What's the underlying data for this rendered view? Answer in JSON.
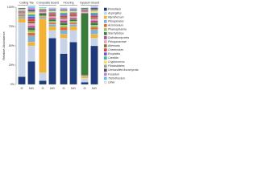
{
  "chart_data": {
    "type": "stacked-bar",
    "y_label": "Relative Abundance",
    "groups": [
      "Ceiling Tile",
      "Composite Board",
      "Flooring",
      "Gypsum Board"
    ],
    "categories": [
      "G",
      "NG",
      "G",
      "NG",
      "G",
      "NG",
      "G",
      "NG"
    ],
    "ylim": [
      0,
      100
    ],
    "yticks": [
      {
        "value": 0,
        "label": "0%"
      },
      {
        "value": 25,
        "label": "25%"
      },
      {
        "value": 50,
        "label": "50%"
      },
      {
        "value": 75,
        "label": "75%"
      },
      {
        "value": 100,
        "label": "100%"
      }
    ],
    "series": [
      {
        "name": "Penicillium",
        "color": "#1f3a7a",
        "values": [
          10,
          30,
          5,
          60,
          40,
          55,
          3,
          50
        ]
      },
      {
        "name": "Aspergillus",
        "color": "#c7d3e6",
        "values": [
          70,
          20,
          10,
          10,
          20,
          15,
          5,
          10
        ]
      },
      {
        "name": "Myrothecium",
        "color": "#f2b233",
        "values": [
          5,
          5,
          70,
          5,
          5,
          5,
          2,
          5
        ]
      },
      {
        "name": "Pleosporales",
        "color": "#7fb2d9",
        "values": [
          2,
          8,
          2,
          3,
          5,
          3,
          1,
          6
        ]
      },
      {
        "name": "Acremonium",
        "color": "#e06b2a",
        "values": [
          1,
          4,
          1,
          2,
          4,
          2,
          1,
          3
        ]
      },
      {
        "name": "Phaeosphaeria",
        "color": "#9bc26a",
        "values": [
          1,
          3,
          1,
          2,
          3,
          2,
          0,
          3
        ]
      },
      {
        "name": "Stachybotrys",
        "color": "#3a7d3a",
        "values": [
          1,
          3,
          3,
          2,
          3,
          2,
          80,
          3
        ]
      },
      {
        "name": "Dothideomycetes",
        "color": "#b04a8c",
        "values": [
          1,
          3,
          1,
          2,
          3,
          2,
          1,
          3
        ]
      },
      {
        "name": "Pleosporaceae",
        "color": "#e8a0c0",
        "values": [
          1,
          3,
          1,
          2,
          2,
          2,
          1,
          2
        ]
      },
      {
        "name": "Alternaria",
        "color": "#8c6d3a",
        "values": [
          1,
          3,
          1,
          2,
          2,
          2,
          1,
          2
        ]
      },
      {
        "name": "Chaetomium",
        "color": "#d94040",
        "values": [
          1,
          3,
          1,
          2,
          2,
          2,
          1,
          2
        ]
      },
      {
        "name": "Exophiala",
        "color": "#6a5acd",
        "values": [
          1,
          3,
          1,
          1,
          2,
          1,
          1,
          2
        ]
      },
      {
        "name": "Candida",
        "color": "#40b0a0",
        "values": [
          1,
          3,
          1,
          1,
          2,
          1,
          1,
          2
        ]
      },
      {
        "name": "Cryptococcus",
        "color": "#f0e060",
        "values": [
          1,
          2,
          1,
          1,
          2,
          1,
          0,
          2
        ]
      },
      {
        "name": "Filobasidiales",
        "color": "#a0a0a0",
        "values": [
          1,
          2,
          0,
          1,
          1,
          1,
          0,
          2
        ]
      },
      {
        "name": "Unclassified Ascomycota",
        "color": "#505050",
        "values": [
          1,
          2,
          0,
          1,
          1,
          1,
          1,
          2
        ]
      },
      {
        "name": "Fusarium",
        "color": "#c080e0",
        "values": [
          0,
          2,
          0,
          1,
          1,
          1,
          0,
          1
        ]
      },
      {
        "name": "Trichothecium",
        "color": "#60c0e0",
        "values": [
          0,
          2,
          1,
          1,
          1,
          1,
          0,
          1
        ]
      },
      {
        "name": "Other",
        "color": "#e0e0e0",
        "values": [
          0,
          2,
          0,
          1,
          1,
          1,
          1,
          1
        ]
      }
    ]
  }
}
